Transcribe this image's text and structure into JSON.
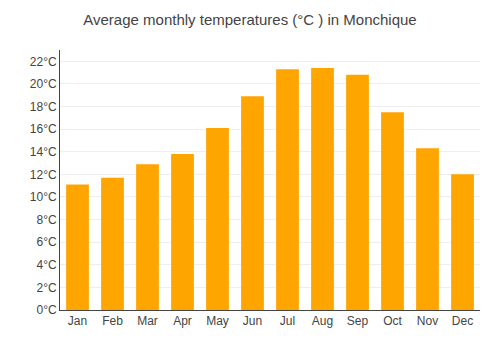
{
  "chart_data": {
    "type": "bar",
    "title": "Average monthly temperatures (°C ) in Monchique",
    "categories": [
      "Jan",
      "Feb",
      "Mar",
      "Apr",
      "May",
      "Jun",
      "Jul",
      "Aug",
      "Sep",
      "Oct",
      "Nov",
      "Dec"
    ],
    "values": [
      11.1,
      11.7,
      12.9,
      13.8,
      16.1,
      18.9,
      21.3,
      21.4,
      20.8,
      17.5,
      14.3,
      12.0
    ],
    "color": "#FFA500",
    "ylim": [
      0,
      23
    ],
    "yticks": [
      {
        "value": 0,
        "label": "0°C"
      },
      {
        "value": 2,
        "label": "2°C"
      },
      {
        "value": 4,
        "label": "4°C"
      },
      {
        "value": 6,
        "label": "6°C"
      },
      {
        "value": 8,
        "label": "8°C"
      },
      {
        "value": 10,
        "label": "10°C"
      },
      {
        "value": 12,
        "label": "12°C"
      },
      {
        "value": 14,
        "label": "14°C"
      },
      {
        "value": 16,
        "label": "16°C"
      },
      {
        "value": 18,
        "label": "18°C"
      },
      {
        "value": 20,
        "label": "20°C"
      },
      {
        "value": 22,
        "label": "22°C"
      }
    ],
    "grid": true
  }
}
